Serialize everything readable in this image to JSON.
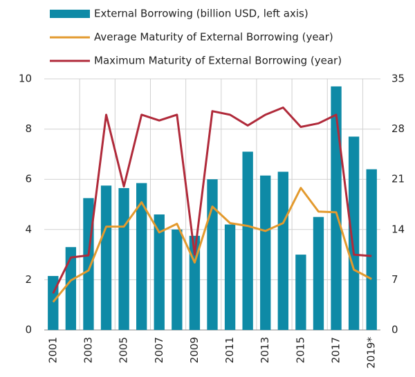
{
  "chart_data": {
    "type": "bar-line",
    "categories": [
      "2001",
      null,
      "2003",
      null,
      "2005",
      null,
      "2007",
      null,
      "2009",
      null,
      "2011",
      null,
      "2013",
      null,
      "2015",
      null,
      "2017",
      null,
      "2019*"
    ],
    "series": [
      {
        "name": "External Borrowing (billion USD, left axis)",
        "type": "bar",
        "color": "#0e8aa6",
        "values": [
          2.15,
          3.3,
          5.25,
          5.75,
          5.65,
          5.85,
          4.6,
          4.0,
          3.75,
          6.0,
          4.2,
          7.1,
          6.15,
          6.3,
          3.0,
          4.5,
          9.7,
          7.7,
          6.4
        ]
      },
      {
        "name": "Average Maturity of External Borrowing (year)",
        "type": "line",
        "axis": "y2",
        "color": "#e39a2e",
        "values": [
          3.9,
          6.9,
          8.3,
          14.4,
          14.4,
          17.8,
          13.6,
          14.8,
          9.4,
          17.2,
          14.9,
          14.5,
          13.8,
          14.9,
          19.8,
          16.5,
          16.4,
          8.4,
          7.1
        ]
      },
      {
        "name": "Maximum Maturity of External Borrowing (year)",
        "type": "line",
        "axis": "y2",
        "color": "#b02a3a",
        "values": [
          5.1,
          10.1,
          10.4,
          30,
          20,
          30,
          29.2,
          30,
          10.5,
          30.5,
          30,
          28.5,
          30,
          31,
          28.3,
          28.8,
          30,
          10.5,
          10.3
        ]
      }
    ],
    "ylim": [
      0,
      10
    ],
    "yticks": [
      0,
      2,
      4,
      6,
      8,
      10
    ],
    "y2lim": [
      0,
      35
    ],
    "y2ticks": [
      0,
      7,
      14,
      21,
      28,
      35
    ],
    "grid": true
  }
}
